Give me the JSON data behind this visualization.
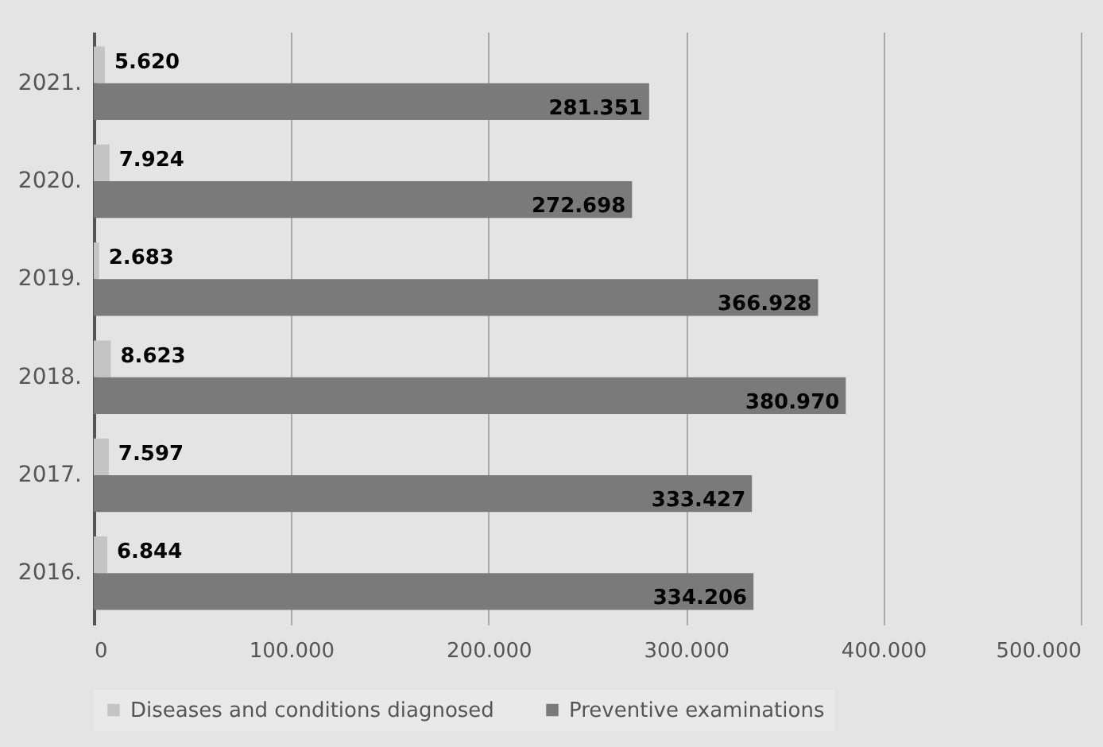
{
  "chart_data": {
    "type": "bar",
    "orientation": "horizontal",
    "categories": [
      "2021.",
      "2020.",
      "2019.",
      "2018.",
      "2017.",
      "2016."
    ],
    "series": [
      {
        "name": "Diseases and conditions diagnosed",
        "color": "#c4c4c4",
        "values": [
          5620,
          7924,
          2683,
          8623,
          7597,
          6844
        ],
        "value_labels": [
          "5.620",
          "7.924",
          "2.683",
          "8.623",
          "7.597",
          "6.844"
        ]
      },
      {
        "name": "Preventive examinations",
        "color": "#7a7a7a",
        "values": [
          281351,
          272698,
          366928,
          380970,
          333427,
          334206
        ],
        "value_labels": [
          "281.351",
          "272.698",
          "366.928",
          "380.970",
          "333.427",
          "334.206"
        ]
      }
    ],
    "xlim": [
      0,
      500000
    ],
    "xticks": [
      0,
      {
        "value": 100000,
        "label": "100.000"
      },
      {
        "value": 200000,
        "label": "200.000"
      },
      {
        "value": 300000,
        "label": "300.000"
      },
      {
        "value": 400000,
        "label": "400.000"
      },
      {
        "value": 500000,
        "label": "500.000"
      }
    ],
    "grid": "x",
    "legend": "bottom"
  }
}
